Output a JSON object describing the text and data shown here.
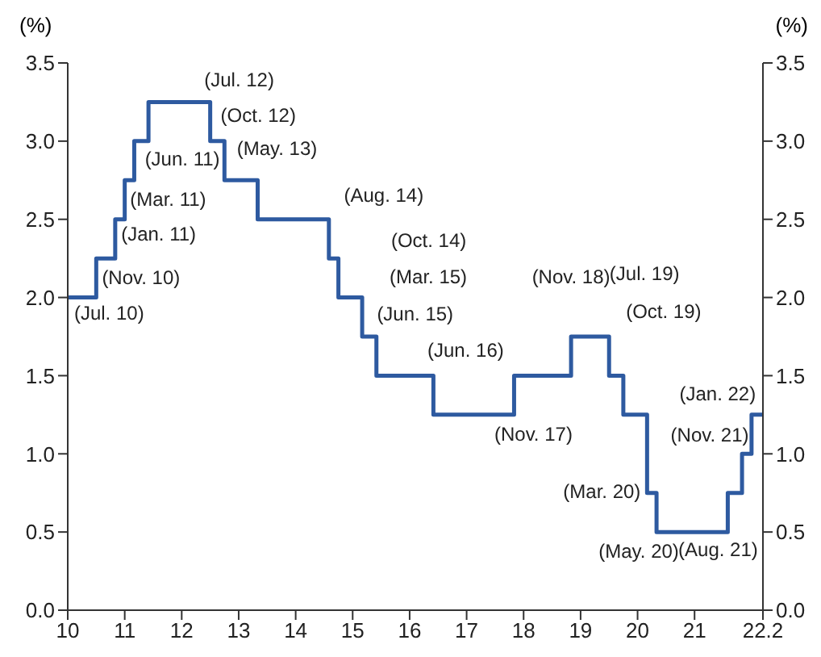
{
  "chart_data": {
    "type": "step",
    "ylabel": "(%)",
    "y2label": "(%)",
    "x": [
      10,
      10.5,
      10.833,
      11,
      11.167,
      11.417,
      12.5,
      12.75,
      13.333,
      14.583,
      14.75,
      15.167,
      15.417,
      16.417,
      17.833,
      18.833,
      19.5,
      19.75,
      20.167,
      20.333,
      21.583,
      21.833,
      22,
      22.2
    ],
    "series": [
      {
        "color": "#2e5aa0",
        "values": [
          2,
          2.25,
          2.5,
          2.75,
          3,
          3.25,
          3,
          2.75,
          2.5,
          2.25,
          2,
          1.75,
          1.5,
          1.25,
          1.5,
          1.75,
          1.5,
          1.25,
          0.75,
          0.5,
          0.75,
          1,
          1.25,
          1.25
        ]
      }
    ],
    "xlim": [
      10,
      22.2
    ],
    "xticks": [
      10,
      11,
      12,
      13,
      14,
      15,
      16,
      17,
      18,
      19,
      20,
      21,
      22.2
    ],
    "ylim": [
      0,
      3.5
    ],
    "yticks": [
      {
        "value": 0,
        "label": "0.0"
      },
      {
        "value": 0.5,
        "label": "0.5"
      },
      {
        "value": 1,
        "label": "1.0"
      },
      {
        "value": 1.5,
        "label": "1.5"
      },
      {
        "value": 2,
        "label": "2.0"
      },
      {
        "value": 2.5,
        "label": "2.5"
      },
      {
        "value": 3,
        "label": "3.0"
      },
      {
        "value": 3.5,
        "label": "3.5"
      }
    ],
    "y2lim": [
      0,
      3.5
    ],
    "y2ticks": [
      {
        "value": 0,
        "label": "0.0"
      },
      {
        "value": 0.5,
        "label": "0.5"
      },
      {
        "value": 1,
        "label": "1.0"
      },
      {
        "value": 1.5,
        "label": "1.5"
      },
      {
        "value": 2,
        "label": "2.0"
      },
      {
        "value": 2.5,
        "label": "2.5"
      },
      {
        "value": 3,
        "label": "3.0"
      },
      {
        "value": 3.5,
        "label": "3.5"
      }
    ],
    "grid": false,
    "legend": false,
    "marker": "none",
    "line_style": "solid",
    "annotations": [
      {
        "text": "(Jul. 10)",
        "x": 10.5,
        "y": 2.25
      },
      {
        "text": "(Nov. 10)",
        "x": 10.833,
        "y": 2.5
      },
      {
        "text": "(Jan. 11)",
        "x": 11,
        "y": 2.75
      },
      {
        "text": "(Mar. 11)",
        "x": 11.167,
        "y": 3
      },
      {
        "text": "(Jun. 11)",
        "x": 11.417,
        "y": 3.25
      },
      {
        "text": "(Jul. 12)",
        "x": 12.5,
        "y": 3.25
      },
      {
        "text": "(Oct. 12)",
        "x": 12.75,
        "y": 3
      },
      {
        "text": "(May. 13)",
        "x": 13.333,
        "y": 2.75
      },
      {
        "text": "(Aug. 14)",
        "x": 14.583,
        "y": 2.5
      },
      {
        "text": "(Oct. 14)",
        "x": 14.75,
        "y": 2.25
      },
      {
        "text": "(Mar. 15)",
        "x": 15.167,
        "y": 2
      },
      {
        "text": "(Jun. 15)",
        "x": 15.417,
        "y": 1.75
      },
      {
        "text": "(Jun. 16)",
        "x": 16.417,
        "y": 1.5
      },
      {
        "text": "(Nov. 17)",
        "x": 17.833,
        "y": 1.25
      },
      {
        "text": "(Nov. 18)",
        "x": 18.833,
        "y": 1.75
      },
      {
        "text": "(Jul. 19)",
        "x": 19.5,
        "y": 1.75
      },
      {
        "text": "(Oct. 19)",
        "x": 19.75,
        "y": 1.5
      },
      {
        "text": "(Mar. 20)",
        "x": 20.167,
        "y": 0.75
      },
      {
        "text": "(May. 20)",
        "x": 20.333,
        "y": 0.5
      },
      {
        "text": "(Aug. 21)",
        "x": 21.583,
        "y": 0.5
      },
      {
        "text": "(Nov. 21)",
        "x": 21.833,
        "y": 1
      },
      {
        "text": "(Jan. 22)",
        "x": 22,
        "y": 1.25
      }
    ]
  }
}
